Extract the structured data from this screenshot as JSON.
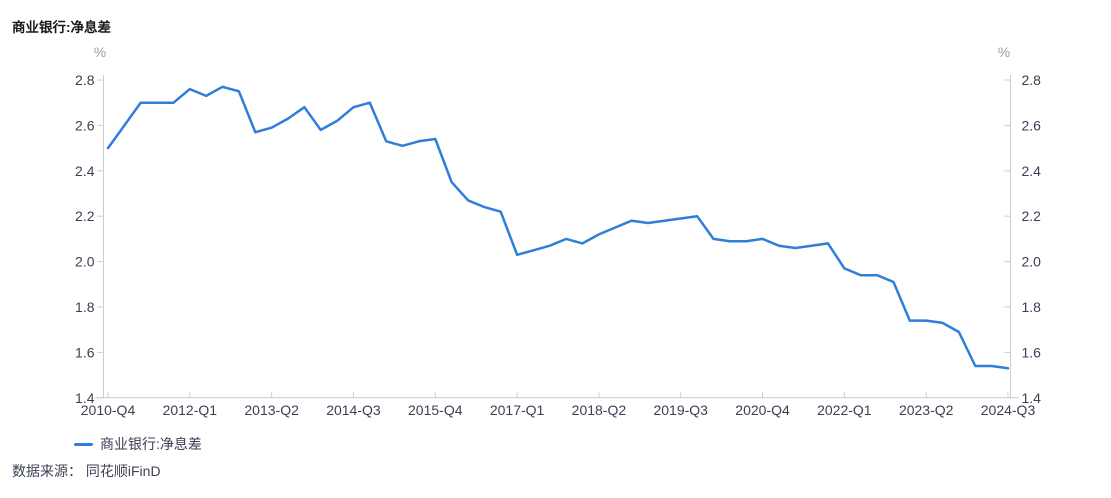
{
  "title": "商业银行:净息差",
  "legend": {
    "items": [
      {
        "label": "商业银行:净息差",
        "color": "#2F7ED8"
      }
    ]
  },
  "source": "数据来源： 同花顺iFinD",
  "colors": {
    "line": "#2F7ED8",
    "axis": "#CCCCCC",
    "tick_label": "#3C3F54",
    "unit_label": "#9B9EA8",
    "title": "#1A1A1A",
    "source_text": "#3E4257"
  },
  "chart_data": {
    "type": "line",
    "title": "商业银行:净息差",
    "grid": false,
    "legend_position": "bottom-left",
    "x": [
      "2010-Q4",
      "2011-Q1",
      "2011-Q2",
      "2011-Q3",
      "2011-Q4",
      "2012-Q1",
      "2012-Q2",
      "2012-Q3",
      "2012-Q4",
      "2013-Q1",
      "2013-Q2",
      "2013-Q3",
      "2013-Q4",
      "2014-Q1",
      "2014-Q2",
      "2014-Q3",
      "2014-Q4",
      "2015-Q1",
      "2015-Q2",
      "2015-Q3",
      "2015-Q4",
      "2016-Q1",
      "2016-Q2",
      "2016-Q3",
      "2016-Q4",
      "2017-Q1",
      "2017-Q2",
      "2017-Q3",
      "2017-Q4",
      "2018-Q1",
      "2018-Q2",
      "2018-Q3",
      "2018-Q4",
      "2019-Q1",
      "2019-Q2",
      "2019-Q3",
      "2019-Q4",
      "2020-Q1",
      "2020-Q2",
      "2020-Q3",
      "2020-Q4",
      "2021-Q1",
      "2021-Q2",
      "2021-Q3",
      "2021-Q4",
      "2022-Q1",
      "2022-Q2",
      "2022-Q3",
      "2022-Q4",
      "2023-Q1",
      "2023-Q2",
      "2023-Q3",
      "2023-Q4",
      "2024-Q1",
      "2024-Q2",
      "2024-Q3"
    ],
    "x_tick_every": 5,
    "x_tick_labels": [
      "2010-Q4",
      "2012-Q1",
      "2013-Q2",
      "2014-Q3",
      "2015-Q4",
      "2017-Q1",
      "2018-Q2",
      "2019-Q3",
      "2020-Q4",
      "2022-Q1",
      "2023-Q2",
      "2024-Q3"
    ],
    "series": [
      {
        "name": "商业银行:净息差",
        "color": "#2F7ED8",
        "values": [
          2.5,
          2.6,
          2.7,
          2.7,
          2.7,
          2.76,
          2.73,
          2.77,
          2.75,
          2.57,
          2.59,
          2.63,
          2.68,
          2.58,
          2.62,
          2.68,
          2.7,
          2.53,
          2.51,
          2.53,
          2.54,
          2.35,
          2.27,
          2.24,
          2.22,
          2.03,
          2.05,
          2.07,
          2.1,
          2.08,
          2.12,
          2.15,
          2.18,
          2.17,
          2.18,
          2.19,
          2.2,
          2.1,
          2.09,
          2.09,
          2.1,
          2.07,
          2.06,
          2.07,
          2.08,
          1.97,
          1.94,
          1.94,
          1.91,
          1.74,
          1.74,
          1.73,
          1.69,
          1.54,
          1.54,
          1.53
        ]
      }
    ],
    "y_axis": {
      "unit_left": "%",
      "unit_right": "%",
      "min": 1.4,
      "max": 2.8,
      "step": 0.2,
      "ticks": [
        2.8,
        2.6,
        2.4,
        2.2,
        2.0,
        1.8,
        1.6,
        1.4
      ],
      "mirrored_right": true
    }
  }
}
